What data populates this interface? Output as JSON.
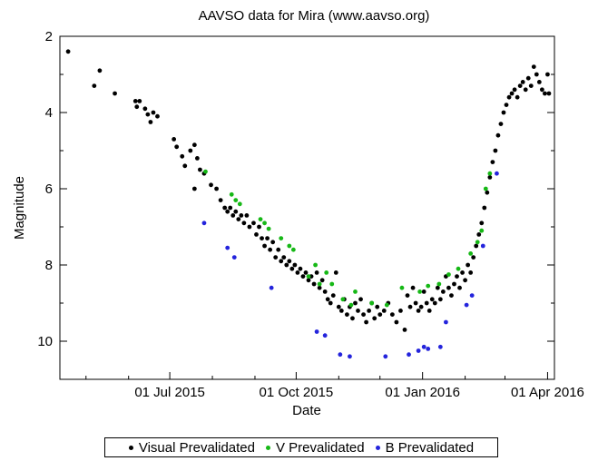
{
  "chart_data": {
    "type": "scatter",
    "title": "AAVSO data for Mira (www.aavso.org)",
    "xlabel": "Date",
    "ylabel": "Magnitude",
    "x_axis": "date",
    "xlim": [
      "2015-04-12",
      "2016-04-06"
    ],
    "ylim": [
      11.0,
      2.0
    ],
    "y_inverted": true,
    "x_ticks": [
      {
        "date": "2015-07-01",
        "label": "01 Jul 2015"
      },
      {
        "date": "2015-10-01",
        "label": "01 Oct 2015"
      },
      {
        "date": "2016-01-01",
        "label": "01 Jan 2016"
      },
      {
        "date": "2016-04-01",
        "label": "01 Apr 2016"
      }
    ],
    "y_ticks": [
      2,
      4,
      6,
      8,
      10
    ],
    "grid": false,
    "legend": "bottom",
    "series": [
      {
        "name": "Visual Prevalidated",
        "color": "#000000",
        "points": [
          [
            "2015-04-18",
            2.4
          ],
          [
            "2015-05-07",
            3.3
          ],
          [
            "2015-05-11",
            2.9
          ],
          [
            "2015-05-22",
            3.5
          ],
          [
            "2015-06-06",
            3.7
          ],
          [
            "2015-06-07",
            3.85
          ],
          [
            "2015-06-09",
            3.7
          ],
          [
            "2015-06-13",
            3.9
          ],
          [
            "2015-06-15",
            4.05
          ],
          [
            "2015-06-17",
            4.25
          ],
          [
            "2015-06-19",
            4.0
          ],
          [
            "2015-06-22",
            4.1
          ],
          [
            "2015-07-04",
            4.7
          ],
          [
            "2015-07-06",
            4.9
          ],
          [
            "2015-07-10",
            5.15
          ],
          [
            "2015-07-12",
            5.4
          ],
          [
            "2015-07-16",
            5.0
          ],
          [
            "2015-07-19",
            4.85
          ],
          [
            "2015-07-21",
            5.2
          ],
          [
            "2015-07-23",
            5.5
          ],
          [
            "2015-07-19",
            6.0
          ],
          [
            "2015-07-26",
            5.6
          ],
          [
            "2015-07-31",
            5.9
          ],
          [
            "2015-08-04",
            6.0
          ],
          [
            "2015-08-07",
            6.3
          ],
          [
            "2015-08-10",
            6.5
          ],
          [
            "2015-08-12",
            6.6
          ],
          [
            "2015-08-14",
            6.5
          ],
          [
            "2015-08-16",
            6.7
          ],
          [
            "2015-08-18",
            6.6
          ],
          [
            "2015-08-20",
            6.8
          ],
          [
            "2015-08-22",
            6.7
          ],
          [
            "2015-08-24",
            6.9
          ],
          [
            "2015-08-26",
            6.7
          ],
          [
            "2015-08-28",
            7.0
          ],
          [
            "2015-08-31",
            6.9
          ],
          [
            "2015-09-02",
            7.2
          ],
          [
            "2015-09-04",
            7.0
          ],
          [
            "2015-09-06",
            7.3
          ],
          [
            "2015-09-08",
            7.5
          ],
          [
            "2015-09-10",
            7.3
          ],
          [
            "2015-09-12",
            7.6
          ],
          [
            "2015-09-14",
            7.4
          ],
          [
            "2015-09-16",
            7.8
          ],
          [
            "2015-09-18",
            7.6
          ],
          [
            "2015-09-20",
            7.9
          ],
          [
            "2015-09-22",
            7.8
          ],
          [
            "2015-09-24",
            8.0
          ],
          [
            "2015-09-26",
            7.9
          ],
          [
            "2015-09-28",
            8.1
          ],
          [
            "2015-09-30",
            8.0
          ],
          [
            "2015-10-02",
            8.2
          ],
          [
            "2015-10-04",
            8.1
          ],
          [
            "2015-10-06",
            8.3
          ],
          [
            "2015-10-08",
            8.2
          ],
          [
            "2015-10-10",
            8.4
          ],
          [
            "2015-10-12",
            8.3
          ],
          [
            "2015-10-14",
            8.5
          ],
          [
            "2015-10-16",
            8.2
          ],
          [
            "2015-10-18",
            8.6
          ],
          [
            "2015-10-20",
            8.4
          ],
          [
            "2015-10-22",
            8.7
          ],
          [
            "2015-10-24",
            8.9
          ],
          [
            "2015-10-26",
            9.0
          ],
          [
            "2015-10-28",
            8.8
          ],
          [
            "2015-10-30",
            8.2
          ],
          [
            "2015-11-01",
            9.1
          ],
          [
            "2015-11-03",
            9.2
          ],
          [
            "2015-11-05",
            8.9
          ],
          [
            "2015-11-07",
            9.3
          ],
          [
            "2015-11-09",
            9.1
          ],
          [
            "2015-11-11",
            9.4
          ],
          [
            "2015-11-13",
            9.0
          ],
          [
            "2015-11-15",
            9.2
          ],
          [
            "2015-11-17",
            8.9
          ],
          [
            "2015-11-19",
            9.3
          ],
          [
            "2015-11-21",
            9.5
          ],
          [
            "2015-11-23",
            9.2
          ],
          [
            "2015-11-25",
            9.0
          ],
          [
            "2015-11-27",
            9.4
          ],
          [
            "2015-11-29",
            9.1
          ],
          [
            "2015-12-01",
            9.3
          ],
          [
            "2015-12-04",
            9.2
          ],
          [
            "2015-12-07",
            9.0
          ],
          [
            "2015-12-10",
            9.3
          ],
          [
            "2015-12-13",
            9.5
          ],
          [
            "2015-12-16",
            9.2
          ],
          [
            "2015-12-19",
            9.7
          ],
          [
            "2015-12-21",
            8.8
          ],
          [
            "2015-12-23",
            9.1
          ],
          [
            "2015-12-25",
            8.6
          ],
          [
            "2015-12-27",
            9.0
          ],
          [
            "2015-12-29",
            9.2
          ],
          [
            "2015-12-31",
            9.1
          ],
          [
            "2016-01-02",
            8.7
          ],
          [
            "2016-01-04",
            9.0
          ],
          [
            "2016-01-06",
            9.2
          ],
          [
            "2016-01-08",
            8.9
          ],
          [
            "2016-01-10",
            9.0
          ],
          [
            "2016-01-12",
            8.6
          ],
          [
            "2016-01-14",
            8.9
          ],
          [
            "2016-01-16",
            8.7
          ],
          [
            "2016-01-18",
            8.3
          ],
          [
            "2016-01-20",
            8.6
          ],
          [
            "2016-01-22",
            8.8
          ],
          [
            "2016-01-24",
            8.5
          ],
          [
            "2016-01-26",
            8.3
          ],
          [
            "2016-01-28",
            8.6
          ],
          [
            "2016-01-30",
            8.2
          ],
          [
            "2016-02-01",
            8.4
          ],
          [
            "2016-02-03",
            8.0
          ],
          [
            "2016-02-05",
            8.2
          ],
          [
            "2016-02-07",
            7.8
          ],
          [
            "2016-02-09",
            7.5
          ],
          [
            "2016-02-11",
            7.2
          ],
          [
            "2016-02-13",
            6.9
          ],
          [
            "2016-02-15",
            6.5
          ],
          [
            "2016-02-17",
            6.1
          ],
          [
            "2016-02-19",
            5.7
          ],
          [
            "2016-02-21",
            5.3
          ],
          [
            "2016-02-23",
            5.0
          ],
          [
            "2016-02-25",
            4.6
          ],
          [
            "2016-02-27",
            4.3
          ],
          [
            "2016-02-29",
            4.0
          ],
          [
            "2016-03-02",
            3.8
          ],
          [
            "2016-03-04",
            3.6
          ],
          [
            "2016-03-06",
            3.5
          ],
          [
            "2016-03-08",
            3.4
          ],
          [
            "2016-03-10",
            3.6
          ],
          [
            "2016-03-12",
            3.3
          ],
          [
            "2016-03-14",
            3.2
          ],
          [
            "2016-03-16",
            3.4
          ],
          [
            "2016-03-18",
            3.1
          ],
          [
            "2016-03-20",
            3.3
          ],
          [
            "2016-03-22",
            2.8
          ],
          [
            "2016-03-24",
            3.0
          ],
          [
            "2016-03-26",
            3.2
          ],
          [
            "2016-03-28",
            3.4
          ],
          [
            "2016-03-30",
            3.5
          ],
          [
            "2016-04-01",
            3.0
          ],
          [
            "2016-04-02",
            3.5
          ]
        ]
      },
      {
        "name": "V Prevalidated",
        "color": "#16b816",
        "points": [
          [
            "2015-07-27",
            5.55
          ],
          [
            "2015-08-15",
            6.15
          ],
          [
            "2015-08-18",
            6.3
          ],
          [
            "2015-08-21",
            6.4
          ],
          [
            "2015-09-05",
            6.8
          ],
          [
            "2015-09-08",
            6.9
          ],
          [
            "2015-09-11",
            7.05
          ],
          [
            "2015-09-20",
            7.3
          ],
          [
            "2015-09-26",
            7.5
          ],
          [
            "2015-09-29",
            7.6
          ],
          [
            "2015-10-10",
            8.3
          ],
          [
            "2015-10-15",
            8.0
          ],
          [
            "2015-10-18",
            8.5
          ],
          [
            "2015-10-23",
            8.2
          ],
          [
            "2015-10-27",
            8.5
          ],
          [
            "2015-11-04",
            8.9
          ],
          [
            "2015-11-10",
            9.05
          ],
          [
            "2015-11-13",
            8.7
          ],
          [
            "2015-11-25",
            9.0
          ],
          [
            "2015-12-06",
            9.05
          ],
          [
            "2015-12-17",
            8.6
          ],
          [
            "2015-12-30",
            8.7
          ],
          [
            "2016-01-05",
            8.55
          ],
          [
            "2016-01-13",
            8.5
          ],
          [
            "2016-01-20",
            8.25
          ],
          [
            "2016-01-27",
            8.1
          ],
          [
            "2016-02-05",
            7.7
          ],
          [
            "2016-02-10",
            7.4
          ],
          [
            "2016-02-13",
            7.1
          ],
          [
            "2016-02-16",
            6.0
          ],
          [
            "2016-02-19",
            5.6
          ]
        ]
      },
      {
        "name": "B Prevalidated",
        "color": "#2424dc",
        "points": [
          [
            "2015-07-26",
            6.9
          ],
          [
            "2015-08-12",
            7.55
          ],
          [
            "2015-08-17",
            7.8
          ],
          [
            "2015-09-13",
            8.6
          ],
          [
            "2015-10-16",
            9.75
          ],
          [
            "2015-10-22",
            9.85
          ],
          [
            "2015-11-02",
            10.35
          ],
          [
            "2015-11-09",
            10.4
          ],
          [
            "2015-12-05",
            10.4
          ],
          [
            "2015-12-22",
            10.35
          ],
          [
            "2015-12-29",
            10.25
          ],
          [
            "2016-01-02",
            10.15
          ],
          [
            "2016-01-05",
            10.2
          ],
          [
            "2016-01-14",
            10.15
          ],
          [
            "2016-01-18",
            9.5
          ],
          [
            "2016-02-02",
            9.05
          ],
          [
            "2016-02-06",
            8.8
          ],
          [
            "2016-02-14",
            7.5
          ],
          [
            "2016-02-24",
            5.6
          ]
        ]
      }
    ]
  }
}
